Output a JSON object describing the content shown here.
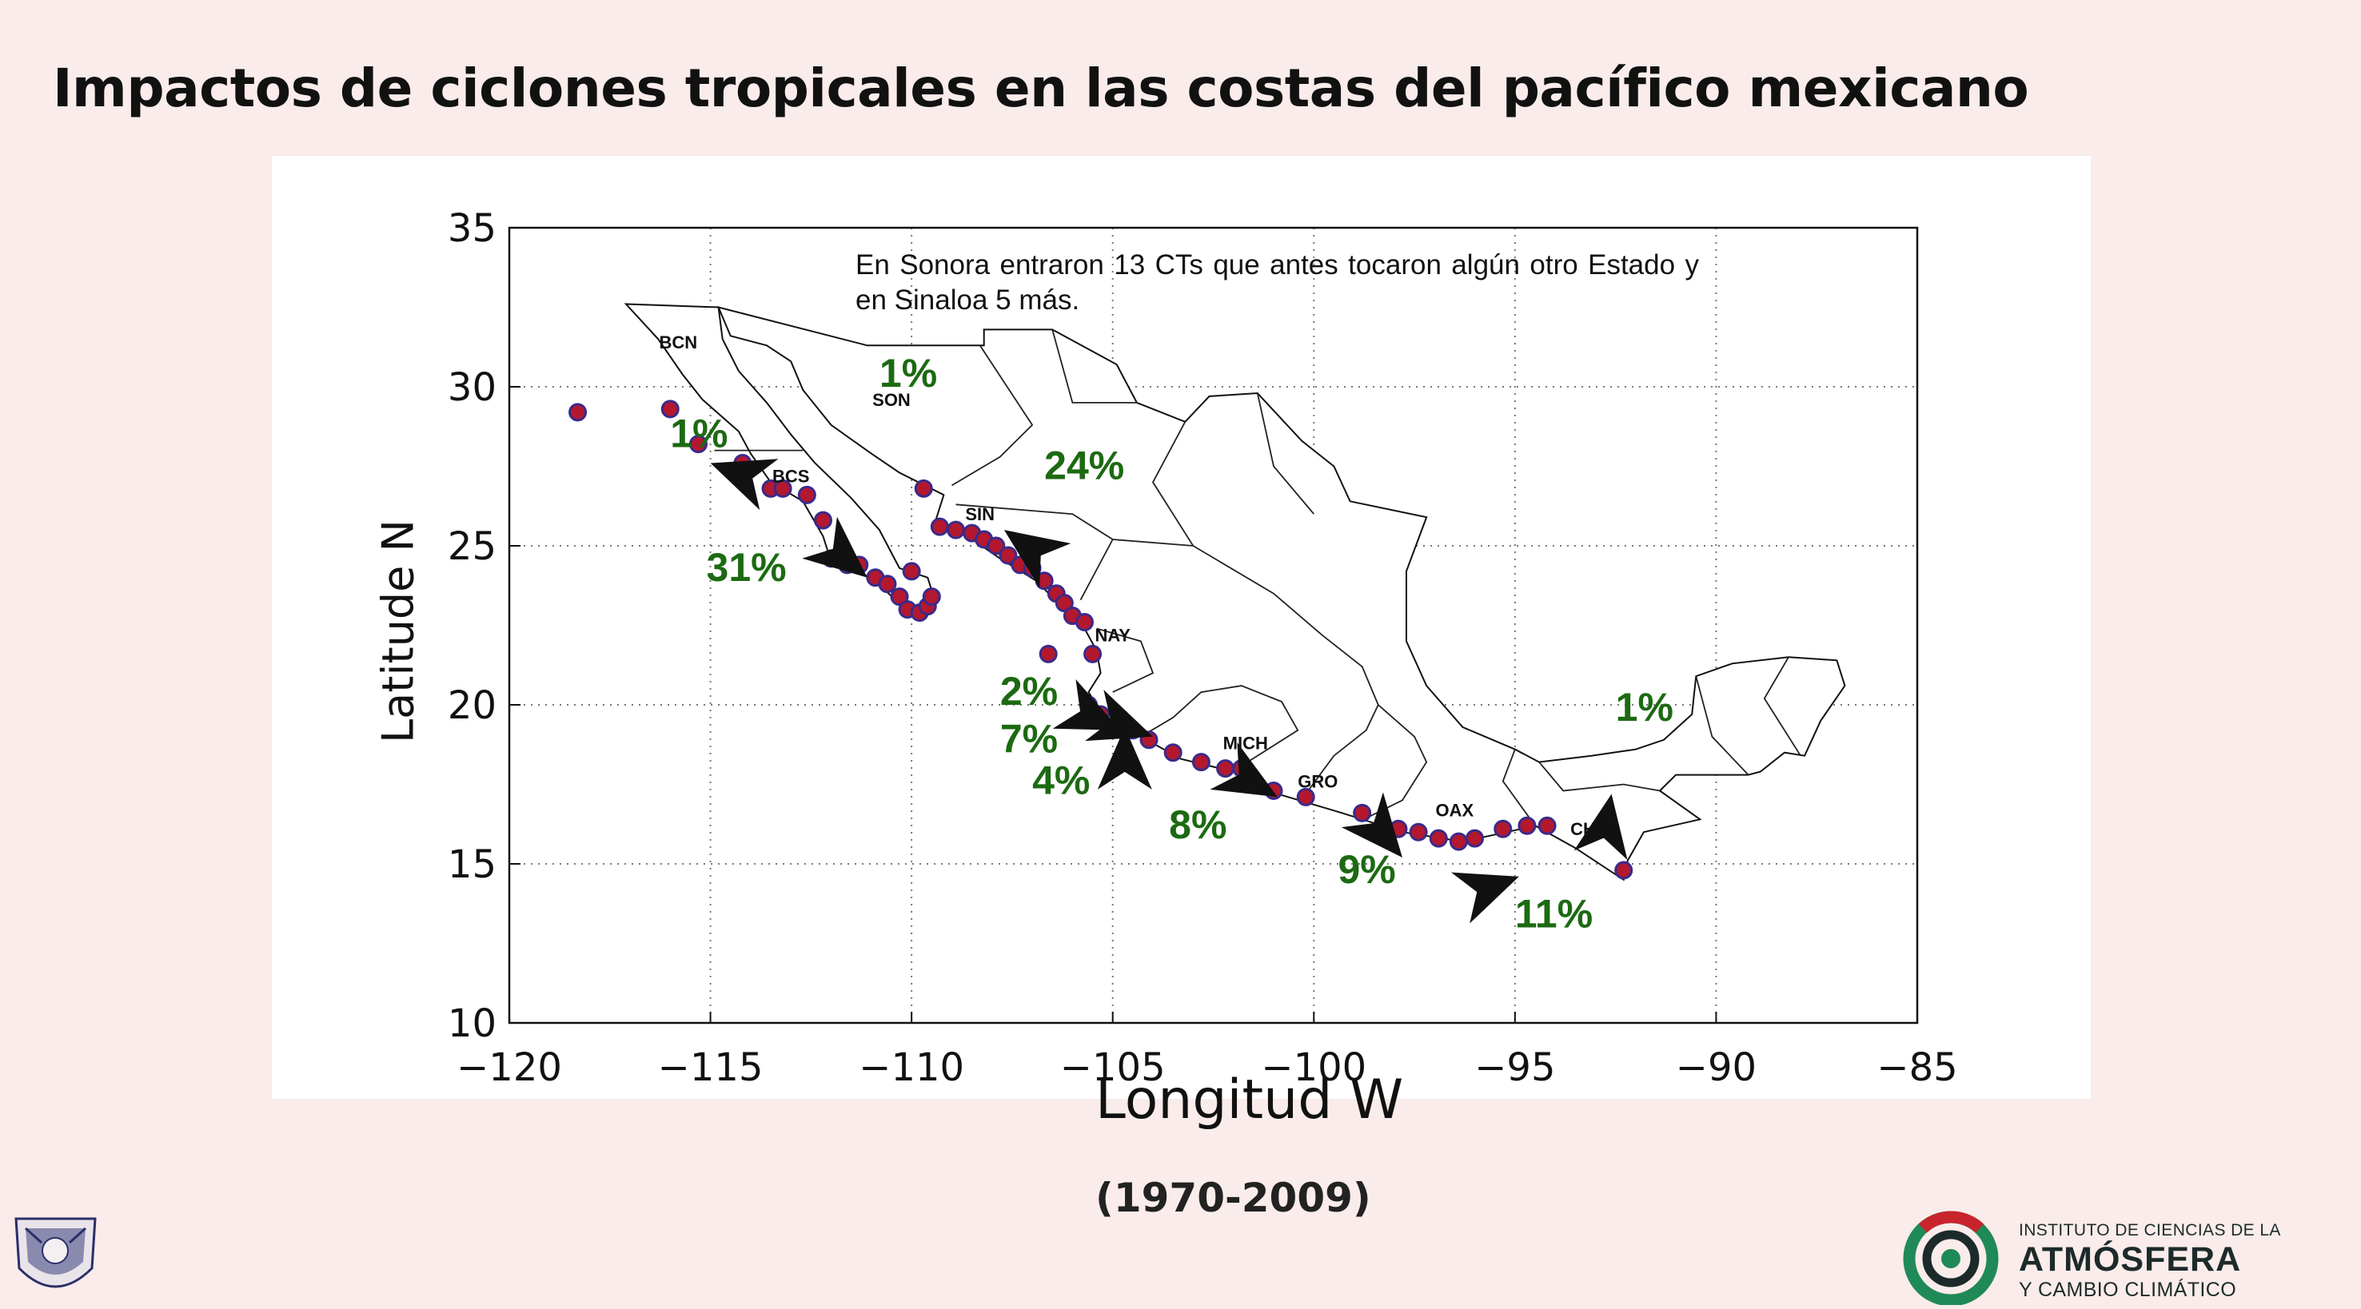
{
  "slide": {
    "title": "Impactos de ciclones tropicales en las costas del pacífico mexicano",
    "period": "(1970-2009)"
  },
  "map": {
    "x_axis_label": "Longitud W",
    "y_axis_label": "Latitude N",
    "x_ticks": [
      -120,
      -115,
      -110,
      -105,
      -100,
      -95,
      -90,
      -85
    ],
    "y_ticks": [
      10,
      15,
      20,
      25,
      30,
      35
    ],
    "x_range": [
      -120,
      -85
    ],
    "y_range": [
      10,
      35
    ],
    "grid": "dotted",
    "note": "En Sonora entraron 13 CTs que antes tocaron algún otro Estado y en Sinaloa 5 más.",
    "state_labels": [
      {
        "text": "BCN",
        "lon": -115.8,
        "lat": 31.2
      },
      {
        "text": "SON",
        "lon": -110.5,
        "lat": 29.4
      },
      {
        "text": "BCS",
        "lon": -113.0,
        "lat": 27.0
      },
      {
        "text": "SIN",
        "lon": -108.3,
        "lat": 25.8
      },
      {
        "text": "NAY",
        "lon": -105.0,
        "lat": 22.0
      },
      {
        "text": "MICH",
        "lon": -101.7,
        "lat": 18.6
      },
      {
        "text": "GRO",
        "lon": -99.9,
        "lat": 17.4
      },
      {
        "text": "OAX",
        "lon": -96.5,
        "lat": 16.5
      },
      {
        "text": "CHIS",
        "lon": -93.1,
        "lat": 15.9
      }
    ],
    "percent_labels": [
      {
        "text": "1%",
        "lon": -116.0,
        "lat": 28.1
      },
      {
        "text": "1%",
        "lon": -110.8,
        "lat": 30.0
      },
      {
        "text": "24%",
        "lon": -106.7,
        "lat": 27.1
      },
      {
        "text": "31%",
        "lon": -115.1,
        "lat": 23.9
      },
      {
        "text": "2%",
        "lon": -107.8,
        "lat": 20.0
      },
      {
        "text": "7%",
        "lon": -107.8,
        "lat": 18.5
      },
      {
        "text": "4%",
        "lon": -107.0,
        "lat": 17.2
      },
      {
        "text": "8%",
        "lon": -103.6,
        "lat": 15.8
      },
      {
        "text": "9%",
        "lon": -99.4,
        "lat": 14.4
      },
      {
        "text": "11%",
        "lon": -95.0,
        "lat": 13.0
      },
      {
        "text": "1%",
        "lon": -92.5,
        "lat": 19.5
      }
    ],
    "impact_arrows": [
      {
        "tip_lon": -115.0,
        "tip_lat": 27.6,
        "dir_deg": 200
      },
      {
        "tip_lon": -107.7,
        "tip_lat": 25.5,
        "dir_deg": 215
      },
      {
        "tip_lon": -111.1,
        "tip_lat": 24.0,
        "dir_deg": 40
      },
      {
        "tip_lon": -104.7,
        "tip_lat": 19.3,
        "dir_deg": 270
      },
      {
        "tip_lon": -104.8,
        "tip_lat": 19.2,
        "dir_deg": 25
      },
      {
        "tip_lon": -104.0,
        "tip_lat": 19.0,
        "dir_deg": 20
      },
      {
        "tip_lon": -100.9,
        "tip_lat": 17.1,
        "dir_deg": 30
      },
      {
        "tip_lon": -97.8,
        "tip_lat": 15.2,
        "dir_deg": 50
      },
      {
        "tip_lon": -94.9,
        "tip_lat": 14.6,
        "dir_deg": 340
      },
      {
        "tip_lon": -92.6,
        "tip_lat": 17.2,
        "dir_deg": 280
      }
    ],
    "landfall_points": [
      [
        -118.3,
        29.2
      ],
      [
        -116.0,
        29.3
      ],
      [
        -115.3,
        28.2
      ],
      [
        -114.2,
        27.6
      ],
      [
        -113.5,
        26.8
      ],
      [
        -113.2,
        26.8
      ],
      [
        -112.6,
        26.6
      ],
      [
        -112.2,
        25.8
      ],
      [
        -112.0,
        24.6
      ],
      [
        -111.6,
        24.4
      ],
      [
        -111.3,
        24.4
      ],
      [
        -110.9,
        24.0
      ],
      [
        -110.6,
        23.8
      ],
      [
        -110.3,
        23.4
      ],
      [
        -110.1,
        23.0
      ],
      [
        -109.8,
        22.9
      ],
      [
        -109.6,
        23.1
      ],
      [
        -109.5,
        23.4
      ],
      [
        -110.0,
        24.2
      ],
      [
        -109.7,
        26.8
      ],
      [
        -109.3,
        25.6
      ],
      [
        -108.9,
        25.5
      ],
      [
        -108.5,
        25.4
      ],
      [
        -108.2,
        25.2
      ],
      [
        -107.9,
        25.0
      ],
      [
        -107.6,
        24.7
      ],
      [
        -107.3,
        24.4
      ],
      [
        -107.0,
        24.3
      ],
      [
        -106.7,
        23.9
      ],
      [
        -106.4,
        23.5
      ],
      [
        -106.2,
        23.2
      ],
      [
        -106.0,
        22.8
      ],
      [
        -105.7,
        22.6
      ],
      [
        -106.6,
        21.6
      ],
      [
        -105.5,
        21.6
      ],
      [
        -105.6,
        20.0
      ],
      [
        -105.3,
        19.7
      ],
      [
        -104.9,
        19.4
      ],
      [
        -104.5,
        19.2
      ],
      [
        -104.1,
        18.9
      ],
      [
        -103.5,
        18.5
      ],
      [
        -102.8,
        18.2
      ],
      [
        -102.2,
        18.0
      ],
      [
        -101.8,
        18.0
      ],
      [
        -101.0,
        17.3
      ],
      [
        -100.2,
        17.1
      ],
      [
        -98.8,
        16.6
      ],
      [
        -97.9,
        16.1
      ],
      [
        -97.4,
        16.0
      ],
      [
        -96.9,
        15.8
      ],
      [
        -96.4,
        15.7
      ],
      [
        -96.0,
        15.8
      ],
      [
        -95.3,
        16.1
      ],
      [
        -94.7,
        16.2
      ],
      [
        -94.2,
        16.2
      ],
      [
        -92.3,
        14.8
      ]
    ]
  },
  "logos": {
    "institute_line1": "INSTITUTO DE CIENCIAS DE LA",
    "institute_line2": "ATMÓSFERA",
    "institute_line3": "Y CAMBIO CLIMÁTICO"
  },
  "colors": {
    "background": "#f9ecea",
    "percent_text": "#1c6a12",
    "point_fill": "#b3182f",
    "point_stroke": "#3a2a8a",
    "arrow": "#111111",
    "logo_green": "#1f8a57",
    "logo_red": "#c8242c"
  }
}
